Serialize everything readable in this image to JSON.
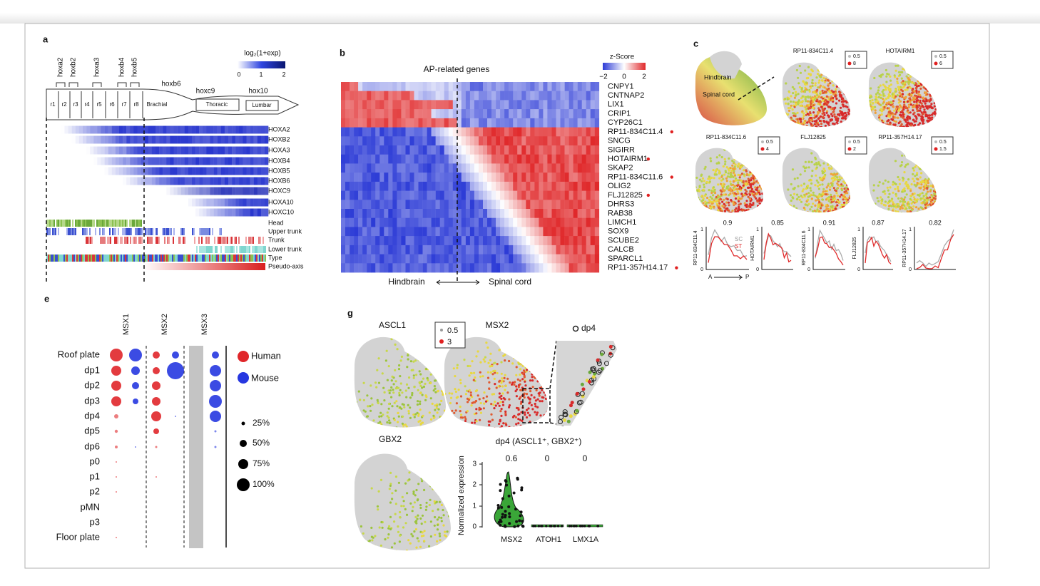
{
  "figure": {
    "a": {
      "label": "a",
      "legend_title": "log₂(1+exp)",
      "legend_ticks": [
        "0",
        "1",
        "2"
      ],
      "hox_labels": [
        "hoxa2",
        "hoxb2",
        "hoxa3",
        "hoxb4",
        "hoxb5"
      ],
      "region_labels": [
        "hoxb6",
        "hoxc9",
        "hox10"
      ],
      "segments": [
        "r1",
        "r2",
        "r3",
        "r4",
        "r5",
        "r6",
        "r7",
        "r8"
      ],
      "regions": [
        "Brachial",
        "Thoracic",
        "Lumbar"
      ],
      "genes": [
        "HOXA2",
        "HOXB2",
        "HOXA3",
        "HOXB4",
        "HOXB5",
        "HOXB6",
        "HOXC9",
        "HOXA10",
        "HOXC10"
      ],
      "annotations": [
        "Head",
        "Upper trunk",
        "Trunk",
        "Lower trunk",
        "Type",
        "Pseudo-axis"
      ]
    },
    "b": {
      "label": "b",
      "title": "AP-related genes",
      "legend_title": "z-Score",
      "legend_ticks": [
        "−2",
        "0",
        "2"
      ],
      "genes": [
        "CNPY1",
        "CNTNAP2",
        "LIX1",
        "CRIP1",
        "CYP26C1",
        "RP11-834C11.4",
        "SNCG",
        "SIGIRR",
        "HOTAIRM1",
        "SKAP2",
        "RP11-834C11.6",
        "OLIG2",
        "FLJ12825",
        "DHRS3",
        "RAB38",
        "LIMCH1",
        "SOX9",
        "SCUBE2",
        "CALCB",
        "SPARCL1",
        "RP11-357H14.17"
      ],
      "x_labels": [
        "Hindbrain",
        "Spinal cord"
      ]
    },
    "c": {
      "label": "c",
      "overview_labels": [
        "Hindbrain",
        "Spinal cord"
      ],
      "maps": [
        {
          "title": "RP11-834C11.4",
          "legend": [
            "0.5",
            "8"
          ]
        },
        {
          "title": "HOTAIRM1",
          "legend": [
            "0.5",
            "6"
          ]
        },
        {
          "title": "RP11-834C11.6",
          "legend": [
            "0.5",
            "4"
          ]
        },
        {
          "title": "FLJ12825",
          "legend": [
            "0.5",
            "2"
          ]
        },
        {
          "title": "RP11-357H14.17",
          "legend": [
            "0.5",
            "1.5"
          ]
        }
      ],
      "profiles": [
        {
          "gene": "RP11-834C11.4",
          "score": "0.9"
        },
        {
          "gene": "HOTAIRM1",
          "score": "0.85"
        },
        {
          "gene": "RP11-834C11.6",
          "score": "0.91"
        },
        {
          "gene": "FLJ12825",
          "score": "0.87"
        },
        {
          "gene": "RP11-357H14.17",
          "score": "0.82"
        }
      ],
      "profile_legend": [
        "SC",
        "ST"
      ],
      "y_ticks": [
        "0",
        "1"
      ],
      "x_ends": [
        "A",
        "P"
      ]
    },
    "e": {
      "label": "e",
      "columns": [
        "MSX1",
        "MSX2",
        "MSX3"
      ],
      "rows": [
        "Roof plate",
        "dp1",
        "dp2",
        "dp3",
        "dp4",
        "dp5",
        "dp6",
        "p0",
        "p1",
        "p2",
        "pMN",
        "p3",
        "Floor plate"
      ],
      "species": [
        "Human",
        "Mouse"
      ],
      "sizes": [
        "25%",
        "50%",
        "75%",
        "100%"
      ]
    },
    "g": {
      "label": "g",
      "maps": [
        "ASCL1",
        "MSX2",
        "GBX2"
      ],
      "legend": [
        "0.5",
        "3"
      ],
      "zoom_label": "dp4",
      "violin_title": "dp4 (ASCL1⁺, GBX2⁺)",
      "scores": [
        "0.6",
        "0",
        "0"
      ],
      "y_label": "Normalized expression",
      "y_ticks": [
        "0",
        "1",
        "2",
        "3"
      ],
      "x_labels": [
        "MSX2",
        "ATOH1",
        "LMX1A"
      ]
    }
  }
}
